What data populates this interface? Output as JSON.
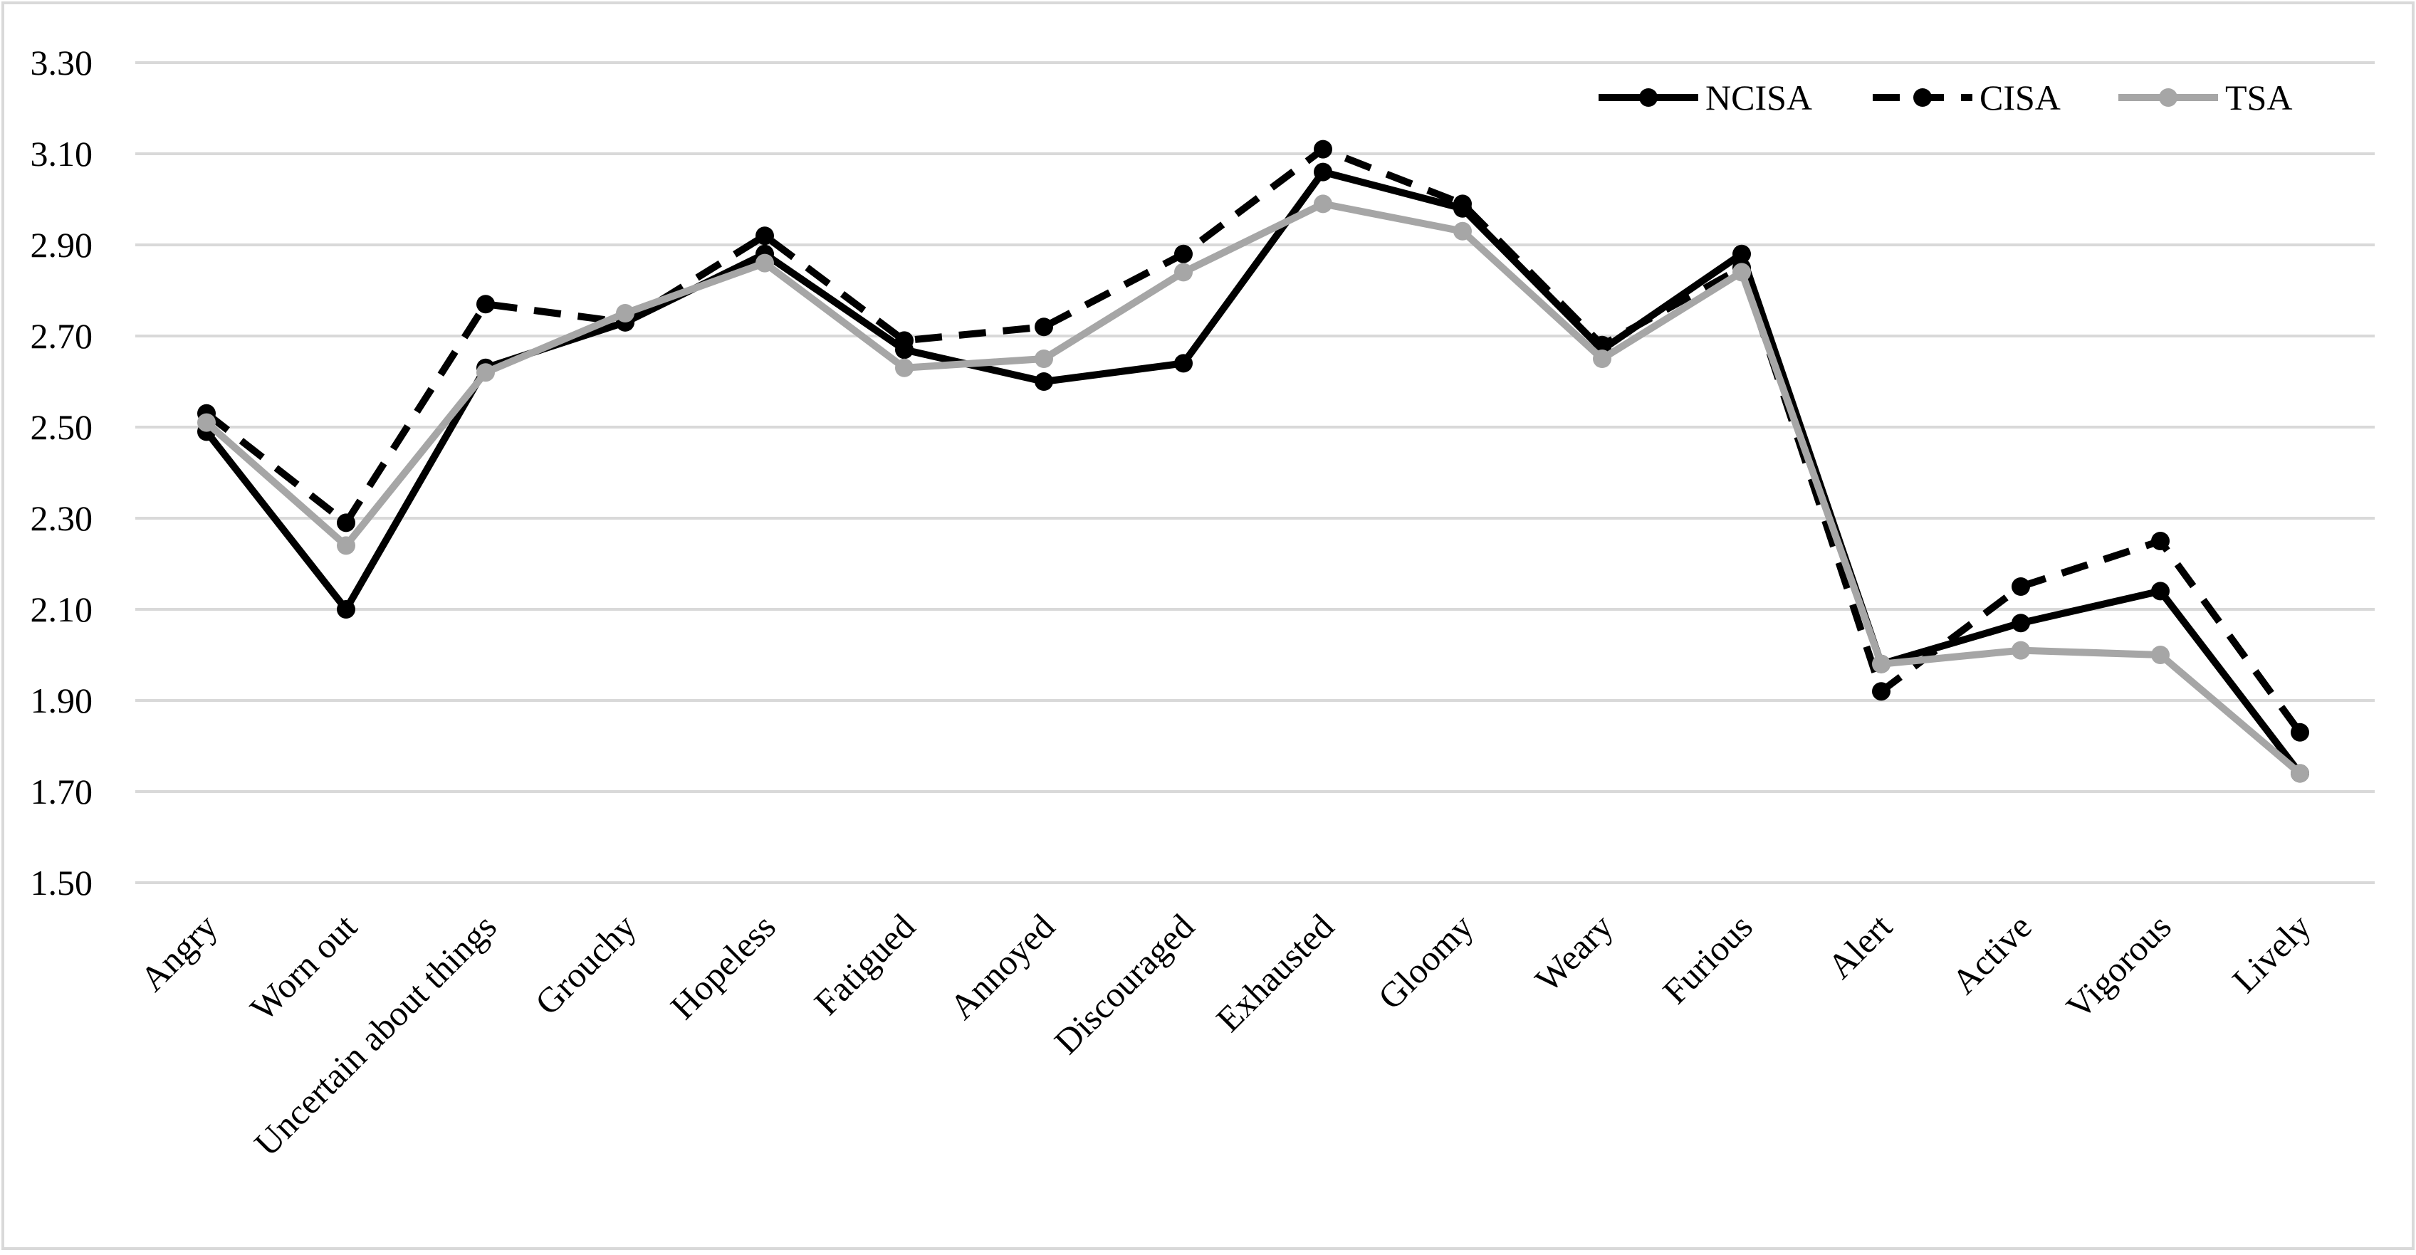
{
  "chart_data": {
    "type": "line",
    "title": "",
    "xlabel": "",
    "ylabel": "",
    "ylim": [
      1.5,
      3.3
    ],
    "yticks": [
      1.5,
      1.7,
      1.9,
      2.1,
      2.3,
      2.5,
      2.7,
      2.9,
      3.1,
      3.3
    ],
    "ytick_labels": [
      "1.50",
      "1.70",
      "1.90",
      "2.10",
      "2.30",
      "2.50",
      "2.70",
      "2.90",
      "3.10",
      "3.30"
    ],
    "grid": true,
    "legend_position": "top-right",
    "categories": [
      "Angry",
      "Worn out",
      "Uncertain about things",
      "Grouchy",
      "Hopeless",
      "Fatigued",
      "Annoyed",
      "Discouraged",
      "Exhausted",
      "Gloomy",
      "Weary",
      "Furious",
      "Alert",
      "Active",
      "Vigorous",
      "Lively"
    ],
    "series": [
      {
        "name": "NCISA",
        "color": "#000000",
        "style": "solid",
        "values": [
          2.49,
          2.1,
          2.63,
          2.73,
          2.88,
          2.67,
          2.6,
          2.64,
          3.06,
          2.98,
          2.67,
          2.88,
          1.98,
          2.07,
          2.14,
          1.74
        ]
      },
      {
        "name": "CISA",
        "color": "#000000",
        "style": "dashed",
        "values": [
          2.53,
          2.29,
          2.77,
          2.73,
          2.92,
          2.69,
          2.72,
          2.88,
          3.11,
          2.99,
          2.68,
          2.85,
          1.92,
          2.15,
          2.25,
          1.83
        ]
      },
      {
        "name": "TSA",
        "color": "#a6a6a6",
        "style": "solid",
        "values": [
          2.51,
          2.24,
          2.62,
          2.75,
          2.86,
          2.63,
          2.65,
          2.84,
          2.99,
          2.93,
          2.65,
          2.84,
          1.98,
          2.01,
          2.0,
          1.74
        ]
      }
    ]
  }
}
